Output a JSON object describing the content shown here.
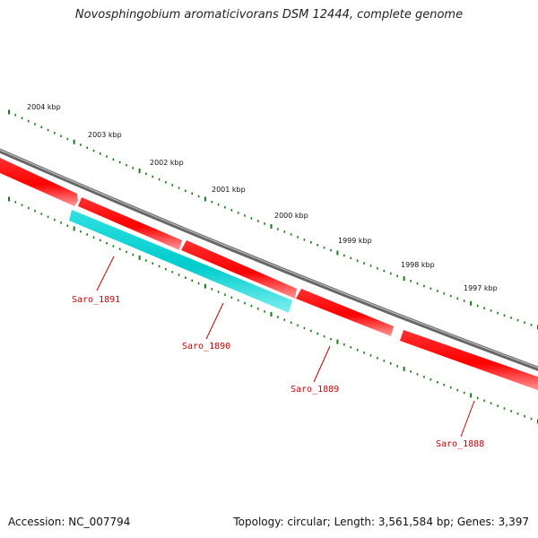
{
  "title": "Novosphingobium aromaticivorans DSM 12444, complete genome",
  "footer": {
    "accession": "Accession: NC_007794",
    "topology": "Topology: circular; Length: 3,561,584 bp; Genes: 3,397"
  },
  "scale_labels": [
    "2004 kbp",
    "2003 kbp",
    "2002 kbp",
    "2001 kbp",
    "2000 kbp",
    "1999 kbp",
    "1998 kbp",
    "1997 kbp"
  ],
  "genes": [
    {
      "id": "Saro_1891",
      "strand": "reverse",
      "color": "#cc0000"
    },
    {
      "id": "Saro_1890",
      "strand": "forward",
      "color": "#00bcbc"
    },
    {
      "id": "Saro_1889",
      "strand": "reverse",
      "color": "#cc0000"
    },
    {
      "id": "Saro_1888",
      "strand": "reverse",
      "color": "#cc0000"
    }
  ],
  "colors": {
    "backbone": "#888888",
    "ticks": "#1a7a1a",
    "reverse_gene": "#ff0000",
    "forward_gene": "#00cccc",
    "label": "#cc0000"
  }
}
